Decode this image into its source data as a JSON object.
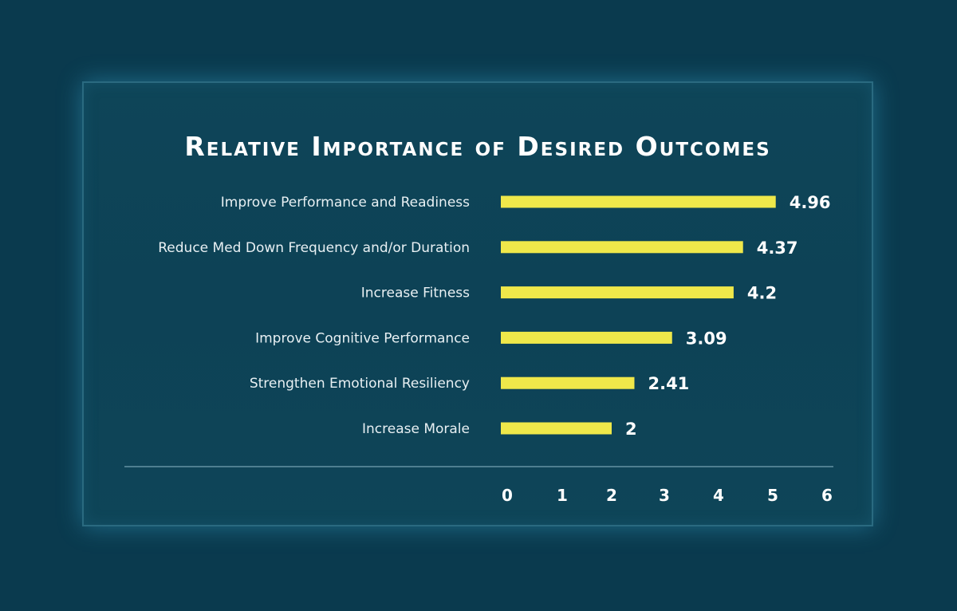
{
  "chart_data": {
    "type": "bar",
    "orientation": "horizontal",
    "title": "Relative Importance of Desired Outcomes",
    "categories": [
      "Improve Performance and Readiness",
      "Reduce Med Down Frequency and/or Duration",
      "Increase Fitness",
      "Improve Cognitive Performance",
      "Strengthen Emotional Resiliency",
      "Increase Morale"
    ],
    "values": [
      4.96,
      4.37,
      4.2,
      3.09,
      2.41,
      2
    ],
    "value_labels": [
      "4.96",
      "4.37",
      "4.2",
      "3.09",
      "2.41",
      "2"
    ],
    "xlim": [
      0,
      6
    ],
    "ticks": [
      "0",
      "1",
      "2",
      "3",
      "4",
      "5",
      "6"
    ],
    "grid": false,
    "legend": "none",
    "xlabel": "",
    "ylabel": ""
  },
  "colors": {
    "background": "#0a3a4e",
    "panel": "#0e4558",
    "bar": "#efe84a",
    "text": "#ffffff",
    "axis": "#4e7f90"
  }
}
